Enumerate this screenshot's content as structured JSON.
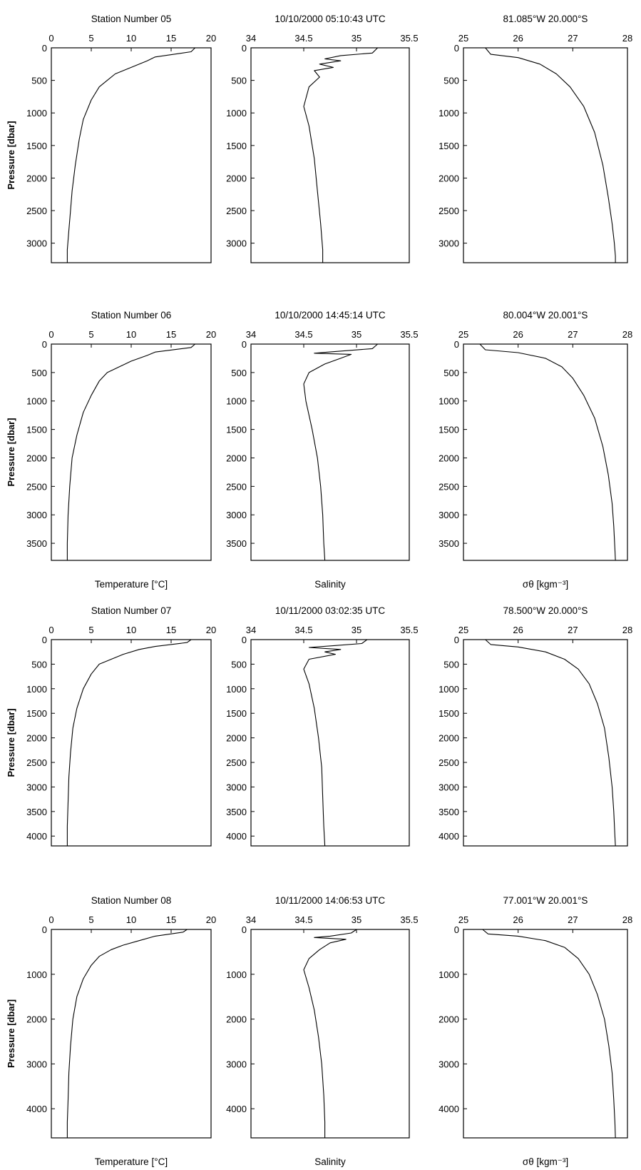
{
  "figure": {
    "y_axis_title": "Pressure [dbar]",
    "x_axis_titles": {
      "temperature": "Temperature [°C]",
      "salinity": "Salinity",
      "density": "σθ [kgm⁻³]"
    },
    "x_axes": {
      "temperature": {
        "ticks": [
          0,
          5,
          10,
          15,
          20
        ],
        "tick_labels": [
          "0",
          "5",
          "10",
          "15",
          "20"
        ],
        "range": [
          0,
          20
        ]
      },
      "salinity": {
        "ticks": [
          34,
          34.5,
          35,
          35.5
        ],
        "tick_labels": [
          "34",
          "34.5",
          "35",
          "35.5"
        ],
        "range": [
          34,
          35.5
        ]
      },
      "density": {
        "ticks": [
          25,
          26,
          27,
          28
        ],
        "tick_labels": [
          "25",
          "26",
          "27",
          "28"
        ],
        "range": [
          25,
          28
        ]
      }
    },
    "rows": [
      {
        "station_label": "Station Number 05",
        "datetime": "10/10/2000  05:10:43 UTC",
        "position": "81.085°W 20.000°S",
        "yticks": [
          0,
          500,
          1000,
          1500,
          2000,
          2500,
          3000
        ],
        "ymax": 3300,
        "show_xtitles": false
      },
      {
        "station_label": "Station Number 06",
        "datetime": "10/10/2000  14:45:14 UTC",
        "position": "80.004°W 20.001°S",
        "yticks": [
          0,
          500,
          1000,
          1500,
          2000,
          2500,
          3000,
          3500
        ],
        "ymax": 3800,
        "show_xtitles": true
      },
      {
        "station_label": "Station Number 07",
        "datetime": "10/11/2000  03:02:35 UTC",
        "position": "78.500°W 20.000°S",
        "yticks": [
          0,
          500,
          1000,
          1500,
          2000,
          2500,
          3000,
          3500,
          4000
        ],
        "ymax": 4200,
        "show_xtitles": false
      },
      {
        "station_label": "Station Number 08",
        "datetime": "10/11/2000  14:06:53 UTC",
        "position": "77.001°W 20.001°S",
        "yticks": [
          0,
          1000,
          2000,
          3000,
          4000
        ],
        "ymax": 4650,
        "show_xtitles": true
      }
    ]
  },
  "chart_data": [
    {
      "type": "line",
      "station": "Station Number 05",
      "variable": "temperature",
      "xlabel": "",
      "ylabel": "Pressure [dbar]",
      "xlim": [
        0,
        20
      ],
      "ylim": [
        0,
        3300
      ],
      "y_inverted": true,
      "x": [
        18.0,
        17.5,
        13.0,
        12.0,
        10.0,
        8.0,
        7.0,
        6.0,
        5.0,
        4.0,
        3.5,
        3.0,
        2.6,
        2.4,
        2.2,
        2.0,
        2.0
      ],
      "y": [
        0,
        60,
        140,
        200,
        300,
        400,
        500,
        600,
        800,
        1100,
        1400,
        1800,
        2200,
        2500,
        2800,
        3100,
        3300
      ]
    },
    {
      "type": "line",
      "station": "Station Number 05",
      "variable": "salinity",
      "xlim": [
        34,
        35.5
      ],
      "ylim": [
        0,
        3300
      ],
      "y_inverted": true,
      "x": [
        35.2,
        35.15,
        34.85,
        34.7,
        34.85,
        34.65,
        34.78,
        34.6,
        34.65,
        34.55,
        34.5,
        34.55,
        34.6,
        34.63,
        34.66,
        34.68,
        34.68
      ],
      "y": [
        0,
        80,
        120,
        170,
        200,
        250,
        300,
        350,
        450,
        600,
        900,
        1200,
        1700,
        2200,
        2700,
        3100,
        3300
      ]
    },
    {
      "type": "line",
      "station": "Station Number 05",
      "variable": "density",
      "xlim": [
        25,
        28
      ],
      "ylim": [
        0,
        3300
      ],
      "y_inverted": true,
      "x": [
        25.4,
        25.5,
        26.0,
        26.4,
        26.7,
        26.95,
        27.2,
        27.4,
        27.55,
        27.65,
        27.72,
        27.76,
        27.78,
        27.78
      ],
      "y": [
        0,
        100,
        150,
        250,
        400,
        600,
        900,
        1300,
        1800,
        2300,
        2700,
        3000,
        3200,
        3300
      ]
    },
    {
      "type": "line",
      "station": "Station Number 06",
      "variable": "temperature",
      "xlim": [
        0,
        20
      ],
      "ylim": [
        0,
        3800
      ],
      "y_inverted": true,
      "x": [
        18.0,
        17.5,
        13.0,
        12.0,
        10.0,
        8.5,
        7.0,
        6.0,
        5.0,
        4.0,
        3.2,
        2.6,
        2.3,
        2.1,
        2.0,
        2.0
      ],
      "y": [
        0,
        60,
        140,
        200,
        300,
        400,
        500,
        650,
        900,
        1200,
        1600,
        2000,
        2500,
        3000,
        3500,
        3800
      ]
    },
    {
      "type": "line",
      "station": "Station Number 06",
      "variable": "salinity",
      "xlim": [
        34,
        35.5
      ],
      "ylim": [
        0,
        3800
      ],
      "y_inverted": true,
      "x": [
        35.2,
        35.15,
        34.8,
        34.6,
        34.95,
        34.85,
        34.7,
        34.55,
        34.5,
        34.52,
        34.58,
        34.63,
        34.66,
        34.68,
        34.69,
        34.7
      ],
      "y": [
        0,
        80,
        130,
        160,
        180,
        250,
        350,
        500,
        700,
        1000,
        1500,
        2000,
        2500,
        3000,
        3500,
        3800
      ]
    },
    {
      "type": "line",
      "station": "Station Number 06",
      "variable": "density",
      "xlim": [
        25,
        28
      ],
      "ylim": [
        0,
        3800
      ],
      "y_inverted": true,
      "x": [
        25.3,
        25.4,
        26.0,
        26.5,
        26.8,
        27.0,
        27.2,
        27.4,
        27.55,
        27.65,
        27.72,
        27.75,
        27.77,
        27.78
      ],
      "y": [
        0,
        100,
        150,
        250,
        400,
        600,
        900,
        1300,
        1800,
        2300,
        2800,
        3200,
        3600,
        3800
      ]
    },
    {
      "type": "line",
      "station": "Station Number 07",
      "variable": "temperature",
      "xlim": [
        0,
        20
      ],
      "ylim": [
        0,
        4200
      ],
      "y_inverted": true,
      "x": [
        17.5,
        17.0,
        13.0,
        11.0,
        9.0,
        7.5,
        6.0,
        5.0,
        4.0,
        3.2,
        2.7,
        2.4,
        2.2,
        2.1,
        2.0,
        2.0
      ],
      "y": [
        0,
        60,
        140,
        200,
        300,
        400,
        500,
        700,
        1000,
        1400,
        1800,
        2300,
        2800,
        3300,
        3800,
        4200
      ]
    },
    {
      "type": "line",
      "station": "Station Number 07",
      "variable": "salinity",
      "xlim": [
        34,
        35.5
      ],
      "ylim": [
        0,
        4200
      ],
      "y_inverted": true,
      "x": [
        35.1,
        35.05,
        34.8,
        34.55,
        34.85,
        34.7,
        34.8,
        34.55,
        34.5,
        34.55,
        34.6,
        34.64,
        34.67,
        34.68,
        34.69,
        34.7
      ],
      "y": [
        0,
        80,
        120,
        160,
        200,
        250,
        300,
        400,
        600,
        900,
        1400,
        2000,
        2600,
        3200,
        3800,
        4200
      ]
    },
    {
      "type": "line",
      "station": "Station Number 07",
      "variable": "density",
      "xlim": [
        25,
        28
      ],
      "ylim": [
        0,
        4200
      ],
      "y_inverted": true,
      "x": [
        25.4,
        25.5,
        26.0,
        26.5,
        26.85,
        27.1,
        27.3,
        27.45,
        27.58,
        27.66,
        27.72,
        27.75,
        27.77,
        27.78
      ],
      "y": [
        0,
        100,
        150,
        250,
        400,
        600,
        900,
        1300,
        1800,
        2400,
        3000,
        3500,
        4000,
        4200
      ]
    },
    {
      "type": "line",
      "station": "Station Number 08",
      "variable": "temperature",
      "xlim": [
        0,
        20
      ],
      "ylim": [
        0,
        4650
      ],
      "y_inverted": true,
      "x": [
        17.0,
        16.5,
        13.0,
        11.0,
        9.0,
        7.5,
        6.0,
        5.0,
        4.0,
        3.2,
        2.7,
        2.4,
        2.2,
        2.1,
        2.0,
        2.0
      ],
      "y": [
        0,
        60,
        150,
        250,
        350,
        450,
        600,
        800,
        1100,
        1500,
        2000,
        2600,
        3200,
        3800,
        4300,
        4650
      ]
    },
    {
      "type": "line",
      "station": "Station Number 08",
      "variable": "salinity",
      "xlim": [
        34,
        35.5
      ],
      "ylim": [
        0,
        4650
      ],
      "y_inverted": true,
      "x": [
        35.0,
        34.95,
        34.75,
        34.6,
        34.9,
        34.75,
        34.65,
        34.55,
        34.5,
        34.55,
        34.6,
        34.64,
        34.67,
        34.69,
        34.7,
        34.7
      ],
      "y": [
        0,
        80,
        150,
        180,
        220,
        300,
        450,
        650,
        900,
        1300,
        1800,
        2400,
        3000,
        3700,
        4300,
        4650
      ]
    },
    {
      "type": "line",
      "station": "Station Number 08",
      "variable": "density",
      "xlim": [
        25,
        28
      ],
      "ylim": [
        0,
        4650
      ],
      "y_inverted": true,
      "x": [
        25.35,
        25.45,
        26.0,
        26.5,
        26.85,
        27.1,
        27.3,
        27.45,
        27.58,
        27.66,
        27.72,
        27.75,
        27.77,
        27.78
      ],
      "y": [
        0,
        100,
        150,
        250,
        400,
        650,
        1000,
        1450,
        2000,
        2600,
        3200,
        3800,
        4300,
        4650
      ]
    }
  ]
}
